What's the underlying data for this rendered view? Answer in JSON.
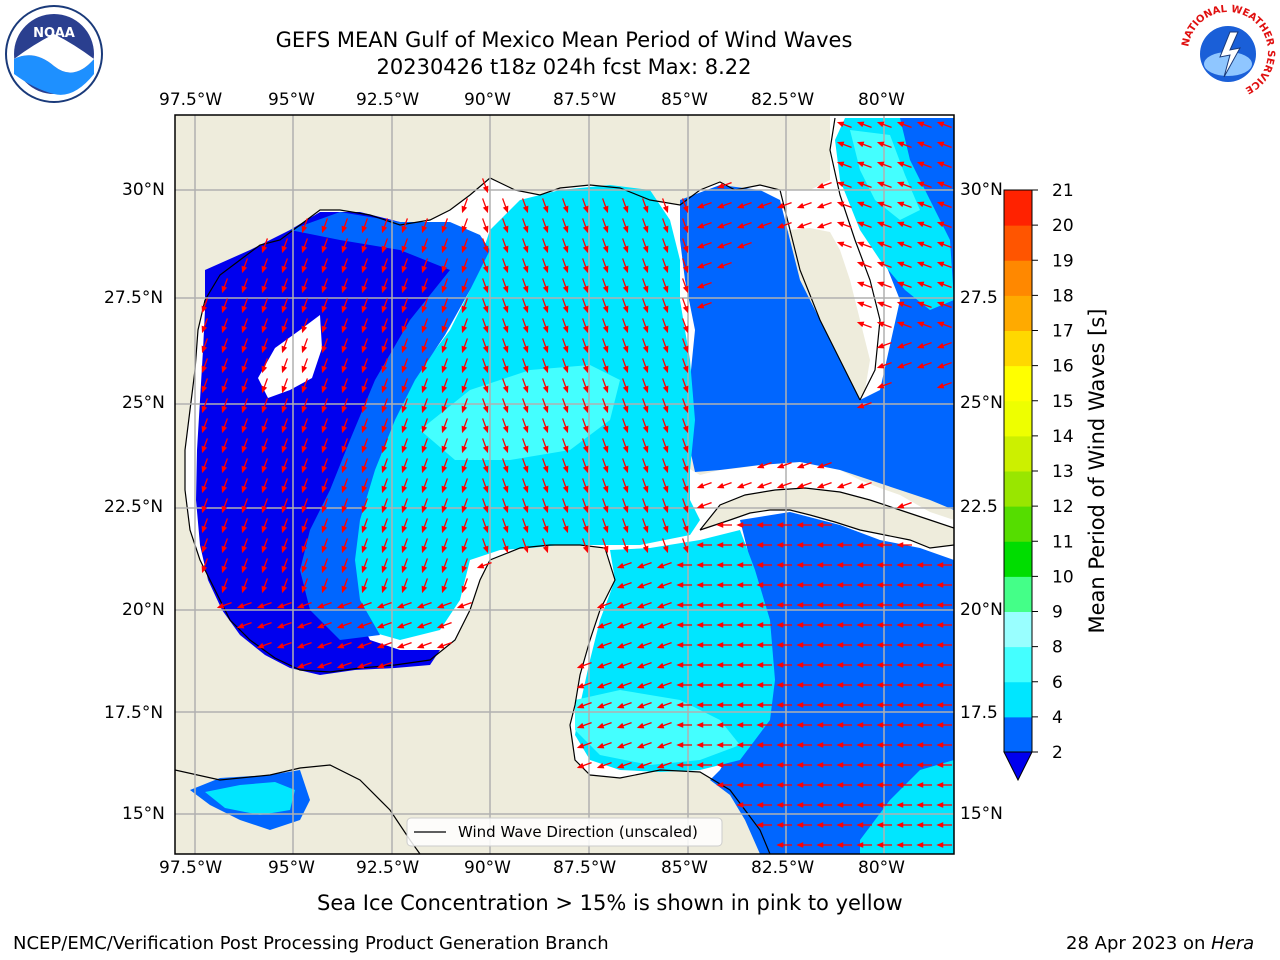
{
  "title": {
    "line1": "GEFS MEAN Gulf of Mexico Mean Period of Wind Waves",
    "line2": "20230426 t18z 024h fcst   Max: 8.22"
  },
  "map": {
    "lon_ticks": [
      "97.5°W",
      "95°W",
      "92.5°W",
      "90°W",
      "87.5°W",
      "85°W",
      "82.5°W",
      "80°W"
    ],
    "lat_ticks_left": [
      "30°N",
      "27.5°N",
      "25°N",
      "22.5°N",
      "20°N",
      "17.5°N",
      "15°N"
    ],
    "lat_ticks_right": [
      "30°N",
      "27.5",
      "25°N",
      "22.5",
      "20°N",
      "17.5",
      "15°N"
    ],
    "legend_label": "Wind Wave Direction (unscaled)",
    "colors": {
      "land": "#eeecdc",
      "coast": "#000000",
      "grid": "#b0b0b0",
      "arrow": "#ff0000"
    }
  },
  "colorbar": {
    "label": "Mean Period of Wind Waves [s]",
    "levels": [
      "2",
      "4",
      "6",
      "8",
      "9",
      "10",
      "11",
      "12",
      "13",
      "14",
      "15",
      "16",
      "17",
      "18",
      "19",
      "20",
      "21"
    ],
    "colors": [
      "#0066ff",
      "#00e6ff",
      "#44ffff",
      "#99ffff",
      "#44ff88",
      "#00dd00",
      "#55dd00",
      "#99e600",
      "#ccf000",
      "#eeff00",
      "#ffff00",
      "#ffd800",
      "#ffaa00",
      "#ff8800",
      "#ff5500",
      "#ff2200"
    ],
    "extend_color": "#0000ee"
  },
  "notes": {
    "sea_ice": "Sea Ice Concentration > 15% is shown in pink to yellow"
  },
  "footer": {
    "left": "NCEP/EMC/Verification Post Processing Product Generation Branch",
    "right_date": "28 Apr 2023 on ",
    "right_host": "Hera"
  },
  "logos": {
    "noaa": "NOAA",
    "nws": "NATIONAL WEATHER SERVICE"
  }
}
